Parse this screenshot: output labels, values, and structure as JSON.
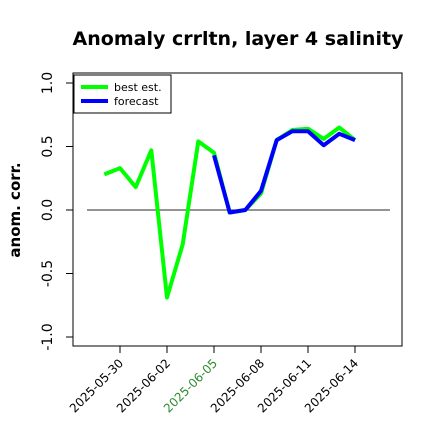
{
  "chart_data": {
    "type": "line",
    "title": "Anomaly crrltn, layer 4 salinity",
    "xlabel": "",
    "ylabel": "anom. corr.",
    "ylim": [
      -1.0,
      1.0
    ],
    "yticks": [
      "-1.0",
      "-0.5",
      "0.0",
      "0.5",
      "1.0"
    ],
    "grid": false,
    "legend_position": "top-left",
    "reference_line": 0.0,
    "x_tick_labels": [
      {
        "text": "2025-05-30",
        "color": "#000000"
      },
      {
        "text": "2025-06-02",
        "color": "#000000"
      },
      {
        "text": "2025-06-05",
        "color": "#2e8b2e"
      },
      {
        "text": "2025-06-08",
        "color": "#000000"
      },
      {
        "text": "2025-06-11",
        "color": "#000000"
      },
      {
        "text": "2025-06-14",
        "color": "#000000"
      }
    ],
    "x_tick_days": [
      1,
      4,
      7,
      10,
      13,
      16
    ],
    "series": [
      {
        "name": "best est.",
        "color": "#00ff00",
        "x": [
          0,
          1,
          2,
          3,
          4,
          5,
          6,
          7,
          8,
          9,
          10,
          11,
          12,
          13,
          14,
          15,
          16
        ],
        "values": [
          0.28,
          0.33,
          0.18,
          0.47,
          -0.69,
          -0.27,
          0.54,
          0.45,
          -0.02,
          0.0,
          0.13,
          0.55,
          0.63,
          0.64,
          0.56,
          0.65,
          0.55
        ]
      },
      {
        "name": "forecast",
        "color": "#0000ff",
        "x": [
          7,
          8,
          9,
          10,
          11,
          12,
          13,
          14,
          15,
          16
        ],
        "values": [
          0.43,
          -0.02,
          0.0,
          0.15,
          0.55,
          0.62,
          0.62,
          0.51,
          0.6,
          0.55
        ]
      }
    ]
  }
}
